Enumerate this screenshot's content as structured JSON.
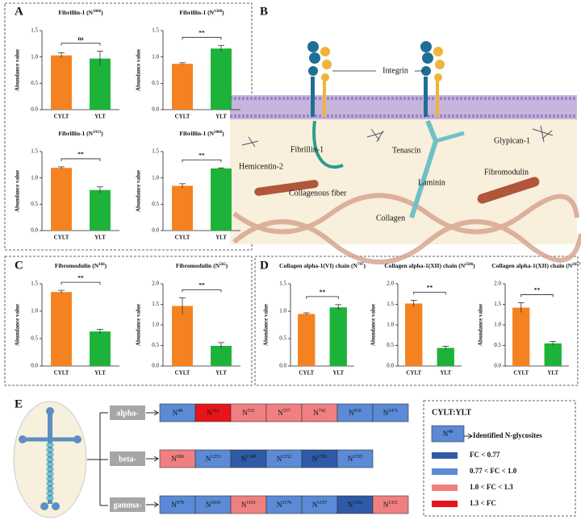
{
  "panels": [
    "A",
    "B",
    "C",
    "D",
    "E"
  ],
  "chart_data": [
    {
      "type": "bar",
      "title_parts": [
        "Fibrillin-1 (N",
        "1066",
        ")"
      ],
      "ylabel": "Abundance value",
      "categories": [
        "CYLT",
        "YLT"
      ],
      "values": [
        1.03,
        0.97
      ],
      "errors": [
        0.05,
        0.14
      ],
      "colors": [
        "#f58220",
        "#1db33a"
      ],
      "significance": "ns",
      "ylim": [
        0,
        1.5
      ],
      "yticks": [
        {
          "value": 0,
          "label": "0.0"
        },
        0.5,
        {
          "value": 1,
          "label": "1.0"
        },
        1.5
      ]
    },
    {
      "type": "bar",
      "title_parts": [
        "Fibrillin-1 (N",
        "1368",
        ")"
      ],
      "ylabel": "Abundance value",
      "categories": [
        "CYLT",
        "YLT"
      ],
      "values": [
        0.87,
        1.16
      ],
      "errors": [
        0.02,
        0.06
      ],
      "colors": [
        "#f58220",
        "#1db33a"
      ],
      "significance": "**",
      "ylim": [
        0,
        1.5
      ],
      "yticks": [
        {
          "value": 0,
          "label": "0.0"
        },
        0.5,
        {
          "value": 1,
          "label": "1.0"
        },
        1.5
      ]
    },
    {
      "type": "bar",
      "title_parts": [
        "Fibrillin-1 (N",
        "1913",
        ")"
      ],
      "ylabel": "Abundance value",
      "categories": [
        "CYLT",
        "YLT"
      ],
      "values": [
        1.19,
        0.77
      ],
      "errors": [
        0.02,
        0.06
      ],
      "colors": [
        "#f58220",
        "#1db33a"
      ],
      "significance": "**",
      "ylim": [
        0,
        1.5
      ],
      "yticks": [
        {
          "value": 0,
          "label": "0.0"
        },
        0.5,
        {
          "value": 1,
          "label": "1.0"
        },
        1.5
      ]
    },
    {
      "type": "bar",
      "title_parts": [
        "Fibrillin-1 (N",
        "2088",
        ")"
      ],
      "ylabel": "Abundance value",
      "categories": [
        "CYLT",
        "YLT"
      ],
      "values": [
        0.85,
        1.18
      ],
      "errors": [
        0.04,
        0.01
      ],
      "colors": [
        "#f58220",
        "#1db33a"
      ],
      "significance": "**",
      "ylim": [
        0,
        1.5
      ],
      "yticks": [
        {
          "value": 0,
          "label": "0.0"
        },
        0.5,
        {
          "value": 1,
          "label": "1.0"
        },
        1.5
      ]
    },
    {
      "type": "bar",
      "title_parts": [
        "Fibromodulin (N",
        "166",
        ")"
      ],
      "ylabel": "Abundance value",
      "categories": [
        "CYLT",
        "YLT"
      ],
      "values": [
        1.35,
        0.63
      ],
      "errors": [
        0.03,
        0.04
      ],
      "colors": [
        "#f58220",
        "#1db33a"
      ],
      "significance": "**",
      "ylim": [
        0,
        1.5
      ],
      "yticks": [
        {
          "value": 0,
          "label": "0.0"
        },
        0.5,
        {
          "value": 1,
          "label": "1.0"
        },
        1.5
      ]
    },
    {
      "type": "bar",
      "title_parts": [
        "Fibromodulin (N",
        "565",
        ")"
      ],
      "ylabel": "Abundance value",
      "categories": [
        "CYLT",
        "YLT"
      ],
      "values": [
        1.46,
        0.49
      ],
      "errors": [
        0.2,
        0.08
      ],
      "colors": [
        "#f58220",
        "#1db33a"
      ],
      "significance": "**",
      "ylim": [
        0,
        2
      ],
      "yticks": [
        {
          "value": 0,
          "label": "0.0"
        },
        0.5,
        {
          "value": 1,
          "label": "1.0"
        },
        1.5,
        {
          "value": 2,
          "label": "2.0"
        }
      ]
    },
    {
      "type": "bar",
      "title_parts": [
        "Collagen alpha-1(VI) chain (N",
        "797",
        ")"
      ],
      "ylabel": "Abundance value",
      "categories": [
        "CYLT",
        "YLT"
      ],
      "values": [
        0.95,
        1.07
      ],
      "errors": [
        0.02,
        0.05
      ],
      "colors": [
        "#f58220",
        "#1db33a"
      ],
      "significance": "**",
      "ylim": [
        0,
        1.5
      ],
      "yticks": [
        {
          "value": 0,
          "label": "0.0"
        },
        0.5,
        {
          "value": 1,
          "label": "1.0"
        },
        1.5
      ]
    },
    {
      "type": "bar",
      "title_parts": [
        "Collagen alpha-1(XII) chain (N",
        "2506",
        ")"
      ],
      "ylabel": "Abundance value",
      "categories": [
        "CYLT",
        "YLT"
      ],
      "values": [
        1.52,
        0.44
      ],
      "errors": [
        0.08,
        0.04
      ],
      "colors": [
        "#f58220",
        "#1db33a"
      ],
      "significance": "**",
      "ylim": [
        0,
        2
      ],
      "yticks": [
        {
          "value": 0,
          "label": "0.0"
        },
        0.5,
        {
          "value": 1,
          "label": "1.0"
        },
        1.5,
        {
          "value": 2,
          "label": "2.0"
        }
      ]
    },
    {
      "type": "bar",
      "title_parts": [
        "Collagen alpha-1(XII) chain (N",
        "2657",
        ")"
      ],
      "ylabel": "Abundance value",
      "categories": [
        "CYLT",
        "YLT"
      ],
      "values": [
        1.42,
        0.55
      ],
      "errors": [
        0.12,
        0.05
      ],
      "colors": [
        "#f58220",
        "#1db33a"
      ],
      "significance": "**",
      "ylim": [
        0,
        2
      ],
      "yticks": [
        {
          "value": 0,
          "label": "0.0"
        },
        0.5,
        {
          "value": 1,
          "label": "1.0"
        },
        1.5,
        {
          "value": 2,
          "label": "2.0"
        }
      ]
    }
  ],
  "diagram": {
    "labels": [
      "Integrin",
      "Fibrillin-1",
      "Hemicentin-2",
      "Tenascin",
      "Glypican-1",
      "Laminin",
      "Fibromodulin",
      "Collagenous fiber",
      "Collagen"
    ]
  },
  "glycosites": {
    "rows": [
      {
        "name": "alpha-",
        "cells": [
          {
            "prefix": "N",
            "site": "48",
            "color": "#5b8ad6"
          },
          {
            "prefix": "N",
            "site": "161",
            "color": "#e8141b"
          },
          {
            "prefix": "N",
            "site": "531",
            "color": "#f08080"
          },
          {
            "prefix": "N",
            "site": "557",
            "color": "#f08080"
          },
          {
            "prefix": "N",
            "site": "742",
            "color": "#f08080"
          },
          {
            "prefix": "N",
            "site": "810",
            "color": "#5b8ad6"
          },
          {
            "prefix": "N",
            "site": "2471",
            "color": "#5b8ad6"
          }
        ]
      },
      {
        "name": "beta-",
        "cells": [
          {
            "prefix": "N",
            "site": "690",
            "color": "#f08080"
          },
          {
            "prefix": "N",
            "site": "1253",
            "color": "#5b8ad6"
          },
          {
            "prefix": "N",
            "site": "1349",
            "color": "#2e5aa7"
          },
          {
            "prefix": "N",
            "site": "1352",
            "color": "#5b8ad6"
          },
          {
            "prefix": "N",
            "site": "1356",
            "color": "#2e5aa7"
          },
          {
            "prefix": "N",
            "site": "1555",
            "color": "#5b8ad6"
          }
        ]
      },
      {
        "name": "gamma-",
        "cells": [
          {
            "prefix": "N",
            "site": "978",
            "color": "#5b8ad6"
          },
          {
            "prefix": "N",
            "site": "1036",
            "color": "#5b8ad6"
          },
          {
            "prefix": "N",
            "site": "1161",
            "color": "#f08080"
          },
          {
            "prefix": "N",
            "site": "1179",
            "color": "#5b8ad6"
          },
          {
            "prefix": "N",
            "site": "1197",
            "color": "#5b8ad6"
          },
          {
            "prefix": "N",
            "site": "1336",
            "color": "#2e5aa7"
          },
          {
            "prefix": "N",
            "site": "1351",
            "color": "#f08080"
          }
        ]
      }
    ],
    "legend": {
      "title": "CYLT:YLT",
      "example": {
        "prefix": "N",
        "site": "48",
        "color": "#5b8ad6",
        "label": "Identified N-glycosites"
      },
      "entries": [
        {
          "label": "FC < 0.77",
          "color": "#2e5aa7"
        },
        {
          "label": "0.77 < FC <  1.0",
          "color": "#5b8ad6"
        },
        {
          "label": "1.0 < FC < 1.3",
          "color": "#f08080"
        },
        {
          "label": "1.3 < FC",
          "color": "#e8141b"
        }
      ]
    }
  }
}
